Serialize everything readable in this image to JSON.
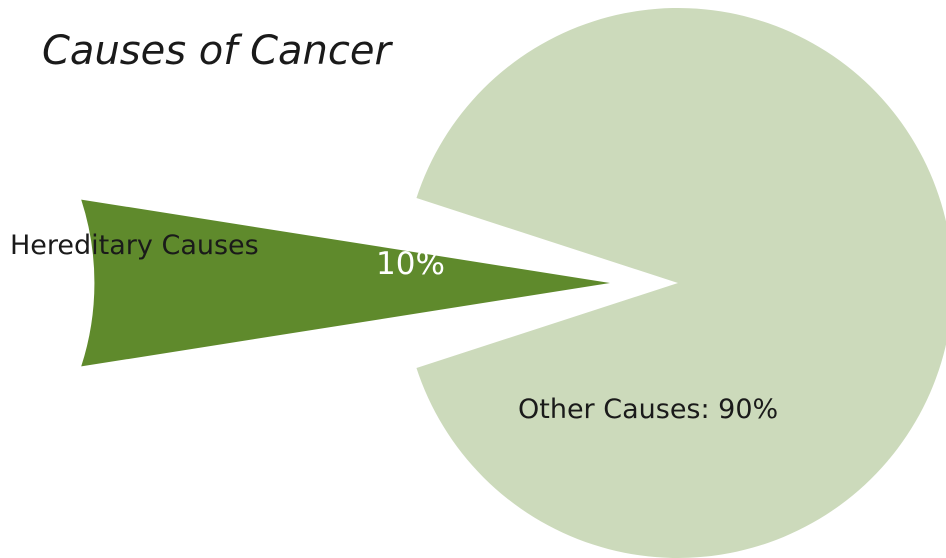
{
  "chart_data": {
    "type": "pie",
    "title": "Causes of Cancer",
    "slices": [
      {
        "outside_label": "Hereditary Causes",
        "inside_label": "10%",
        "value": 10,
        "color": "#5f8a2c",
        "exploded": true
      },
      {
        "inside_label": "Other Causes: 90%",
        "value": 90,
        "color": "#ccdabb",
        "exploded": false
      }
    ]
  }
}
